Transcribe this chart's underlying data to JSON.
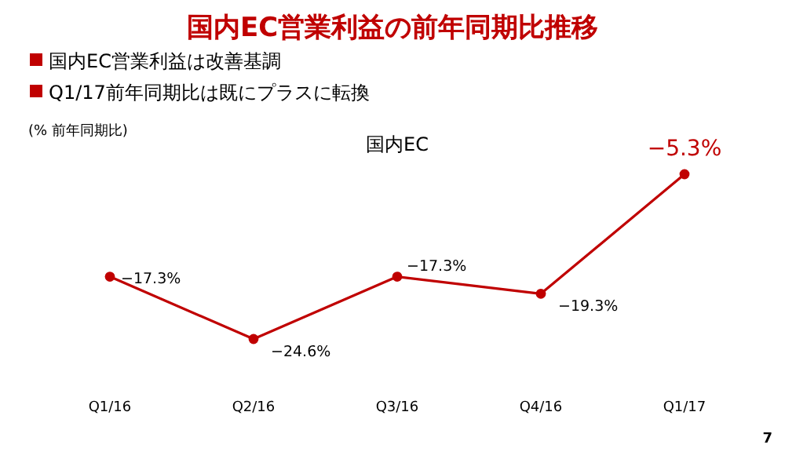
{
  "chart_data": {
    "type": "line",
    "title": "国内EC営業利益の前年同期比推移",
    "subtitle": "国内EC",
    "ylabel": "(% 前年同期比)",
    "categories": [
      "Q1/16",
      "Q2/16",
      "Q3/16",
      "Q4/16",
      "Q1/17"
    ],
    "series": [
      {
        "color": "#c00000",
        "values": [
          -17.3,
          -24.6,
          -17.3,
          -19.3,
          -5.3
        ],
        "value_labels": [
          "−17.3%",
          "−24.6%",
          "−17.3%",
          "−19.3%",
          "−5.3%"
        ]
      }
    ],
    "marker": "circle",
    "line_style": "solid",
    "annotations": [
      "国内EC営業利益は改善基調",
      "Q1/17前年同期比は既にプラスに転換",
      "7"
    ]
  }
}
